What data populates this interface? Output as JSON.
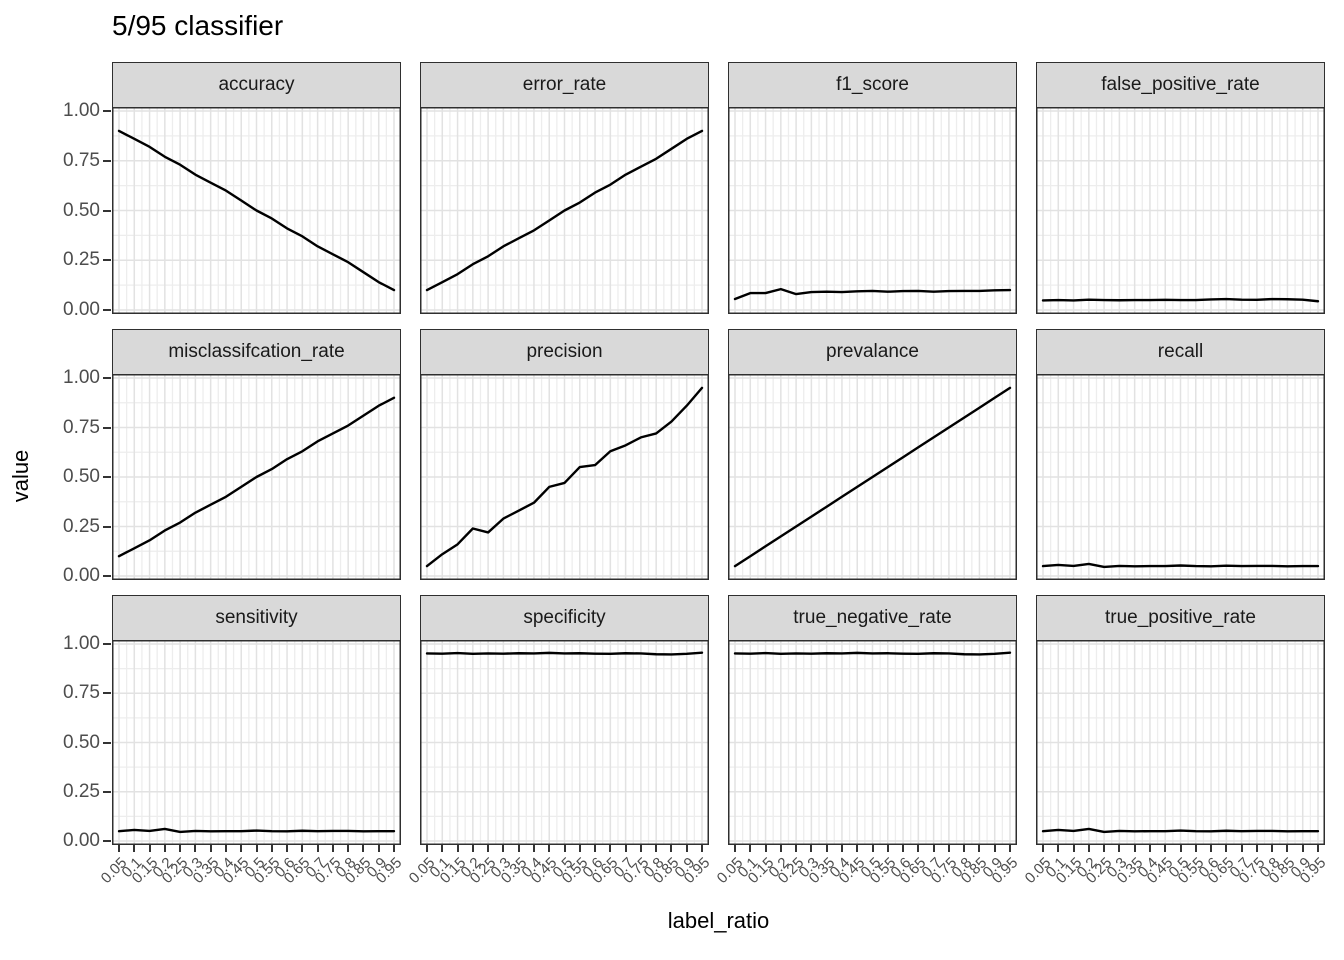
{
  "title": "5/95 classifier",
  "y_axis": {
    "title": "value",
    "tick_labels": [
      "1.00",
      "0.75",
      "0.50",
      "0.25",
      "0.00"
    ]
  },
  "x_axis": {
    "title": "label_ratio",
    "tick_labels": [
      "0.05",
      "0.1",
      "0.15",
      "0.2",
      "0.25",
      "0.3",
      "0.35",
      "0.4",
      "0.45",
      "0.5",
      "0.55",
      "0.6",
      "0.65",
      "0.7",
      "0.75",
      "0.8",
      "0.85",
      "0.9",
      "0.95"
    ]
  },
  "colors": {
    "strip_bg": "#d9d9d9",
    "strip_text": "#1a1a1a",
    "panel_border": "#2f2f2f",
    "grid_major": "#e2e2e2",
    "grid_minor": "#ededed",
    "series_line": "#000000",
    "tick_mark": "#333333",
    "tick_text": "#4d4d4d",
    "title_text": "#000000"
  },
  "chart_data": {
    "type": "line",
    "title": "5/95 classifier",
    "xlabel": "label_ratio",
    "ylabel": "value",
    "x": [
      0.05,
      0.1,
      0.15,
      0.2,
      0.25,
      0.3,
      0.35,
      0.4,
      0.45,
      0.5,
      0.55,
      0.6,
      0.65,
      0.7,
      0.75,
      0.8,
      0.85,
      0.9,
      0.95
    ],
    "ylim": [
      0,
      1
    ],
    "y_major_ticks": [
      0,
      0.25,
      0.5,
      0.75,
      1.0
    ],
    "y_minor_ticks": [
      0.125,
      0.375,
      0.625,
      0.875
    ],
    "grid": true,
    "legend": false,
    "facet_layout": {
      "rows": 3,
      "cols": 4
    },
    "facets": [
      {
        "name": "accuracy",
        "values": [
          0.9,
          0.86,
          0.82,
          0.77,
          0.73,
          0.68,
          0.64,
          0.6,
          0.55,
          0.5,
          0.46,
          0.41,
          0.37,
          0.32,
          0.28,
          0.24,
          0.19,
          0.14,
          0.1
        ]
      },
      {
        "name": "error_rate",
        "values": [
          0.1,
          0.14,
          0.18,
          0.23,
          0.27,
          0.32,
          0.36,
          0.4,
          0.45,
          0.5,
          0.54,
          0.59,
          0.63,
          0.68,
          0.72,
          0.76,
          0.81,
          0.86,
          0.9
        ]
      },
      {
        "name": "f1_score",
        "values": [
          0.055,
          0.085,
          0.085,
          0.105,
          0.08,
          0.09,
          0.092,
          0.09,
          0.094,
          0.096,
          0.092,
          0.095,
          0.096,
          0.092,
          0.095,
          0.096,
          0.096,
          0.099,
          0.1
        ]
      },
      {
        "name": "false_positive_rate",
        "values": [
          0.048,
          0.05,
          0.048,
          0.052,
          0.05,
          0.049,
          0.05,
          0.05,
          0.051,
          0.05,
          0.05,
          0.053,
          0.055,
          0.052,
          0.051,
          0.055,
          0.054,
          0.052,
          0.044
        ]
      },
      {
        "name": "misclassifcation_rate",
        "values": [
          0.1,
          0.14,
          0.18,
          0.23,
          0.27,
          0.32,
          0.36,
          0.4,
          0.45,
          0.5,
          0.54,
          0.59,
          0.63,
          0.68,
          0.72,
          0.76,
          0.81,
          0.86,
          0.9
        ]
      },
      {
        "name": "precision",
        "values": [
          0.05,
          0.11,
          0.16,
          0.24,
          0.22,
          0.29,
          0.33,
          0.37,
          0.45,
          0.47,
          0.55,
          0.56,
          0.63,
          0.66,
          0.7,
          0.72,
          0.78,
          0.86,
          0.95
        ]
      },
      {
        "name": "prevalance",
        "values": [
          0.05,
          0.1,
          0.15,
          0.2,
          0.25,
          0.3,
          0.35,
          0.4,
          0.45,
          0.5,
          0.55,
          0.6,
          0.65,
          0.7,
          0.75,
          0.8,
          0.85,
          0.9,
          0.95
        ]
      },
      {
        "name": "recall",
        "values": [
          0.05,
          0.056,
          0.051,
          0.061,
          0.046,
          0.051,
          0.049,
          0.05,
          0.05,
          0.053,
          0.05,
          0.049,
          0.052,
          0.05,
          0.051,
          0.051,
          0.049,
          0.05,
          0.05
        ]
      },
      {
        "name": "sensitivity",
        "values": [
          0.05,
          0.056,
          0.051,
          0.061,
          0.046,
          0.051,
          0.049,
          0.05,
          0.05,
          0.053,
          0.05,
          0.049,
          0.052,
          0.05,
          0.051,
          0.051,
          0.049,
          0.05,
          0.05
        ]
      },
      {
        "name": "specificity",
        "values": [
          0.952,
          0.951,
          0.954,
          0.95,
          0.952,
          0.951,
          0.953,
          0.952,
          0.955,
          0.952,
          0.953,
          0.951,
          0.95,
          0.953,
          0.952,
          0.948,
          0.947,
          0.95,
          0.956
        ]
      },
      {
        "name": "true_negative_rate",
        "values": [
          0.952,
          0.951,
          0.954,
          0.95,
          0.952,
          0.951,
          0.953,
          0.952,
          0.955,
          0.952,
          0.953,
          0.951,
          0.95,
          0.953,
          0.952,
          0.948,
          0.947,
          0.95,
          0.956
        ]
      },
      {
        "name": "true_positive_rate",
        "values": [
          0.05,
          0.056,
          0.051,
          0.061,
          0.046,
          0.051,
          0.049,
          0.05,
          0.05,
          0.053,
          0.05,
          0.049,
          0.052,
          0.05,
          0.051,
          0.051,
          0.049,
          0.05,
          0.05
        ]
      }
    ]
  }
}
